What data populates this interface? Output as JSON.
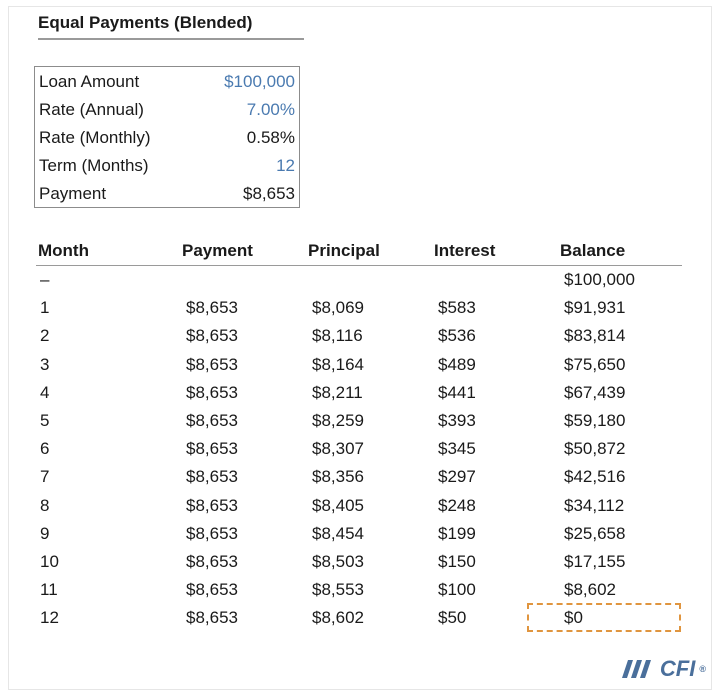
{
  "title": "Equal Payments (Blended)",
  "inputs": [
    {
      "label": "Loan Amount",
      "value": "$100,000",
      "input": true
    },
    {
      "label": "Rate (Annual)",
      "value": "7.00%",
      "input": true
    },
    {
      "label": "Rate (Monthly)",
      "value": "0.58%",
      "input": false
    },
    {
      "label": "Term (Months)",
      "value": "12",
      "input": true
    },
    {
      "label": "Payment",
      "value": "$8,653",
      "input": false
    }
  ],
  "table": {
    "headers": [
      "Month",
      "Payment",
      "Principal",
      "Interest",
      "Balance"
    ],
    "rows": [
      [
        "–",
        "",
        "",
        "",
        "$100,000"
      ],
      [
        "1",
        "$8,653",
        "$8,069",
        "$583",
        "$91,931"
      ],
      [
        "2",
        "$8,653",
        "$8,116",
        "$536",
        "$83,814"
      ],
      [
        "3",
        "$8,653",
        "$8,164",
        "$489",
        "$75,650"
      ],
      [
        "4",
        "$8,653",
        "$8,211",
        "$441",
        "$67,439"
      ],
      [
        "5",
        "$8,653",
        "$8,259",
        "$393",
        "$59,180"
      ],
      [
        "6",
        "$8,653",
        "$8,307",
        "$345",
        "$50,872"
      ],
      [
        "7",
        "$8,653",
        "$8,356",
        "$297",
        "$42,516"
      ],
      [
        "8",
        "$8,653",
        "$8,405",
        "$248",
        "$34,112"
      ],
      [
        "9",
        "$8,653",
        "$8,454",
        "$199",
        "$25,658"
      ],
      [
        "10",
        "$8,653",
        "$8,503",
        "$150",
        "$17,155"
      ],
      [
        "11",
        "$8,653",
        "$8,553",
        "$100",
        "$8,602"
      ],
      [
        "12",
        "$8,653",
        "$8,602",
        "$50",
        "$0"
      ]
    ]
  },
  "logo": {
    "text": "CFI",
    "mark": "®"
  },
  "colors": {
    "input_blue": "#4a7ab0",
    "highlight_orange": "#e0953f",
    "logo_blue": "#4a6f9b"
  }
}
